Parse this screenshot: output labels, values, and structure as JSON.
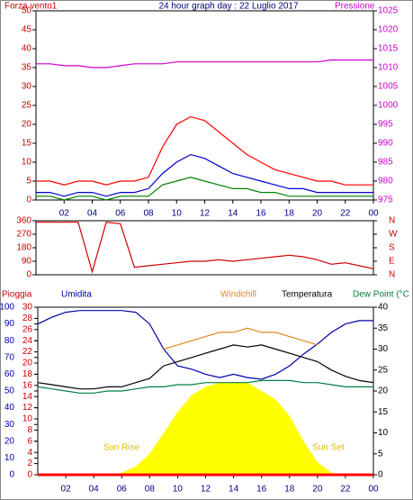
{
  "chart_data": [
    {
      "type": "line",
      "title": "24 hour graph day : 22 Luglio 2017",
      "x": [
        0,
        1,
        2,
        3,
        4,
        5,
        6,
        7,
        8,
        9,
        10,
        11,
        12,
        13,
        14,
        15,
        16,
        17,
        18,
        19,
        20,
        21,
        22,
        23,
        24
      ],
      "xlim": [
        0,
        24
      ],
      "xticks": [
        {
          "value": 2,
          "label": "02"
        },
        {
          "value": 4,
          "label": "04"
        },
        {
          "value": 6,
          "label": "06"
        },
        {
          "value": 8,
          "label": "08"
        },
        10,
        12,
        14,
        16,
        18,
        20,
        22,
        {
          "value": 24,
          "label": "00"
        }
      ],
      "ylim": [
        0,
        50
      ],
      "yticks": [
        0,
        5,
        10,
        15,
        20,
        25,
        30,
        35,
        40,
        45,
        50
      ],
      "ycolor": "#cc0000",
      "y2lim": [
        975,
        1025
      ],
      "y2ticks": [
        975,
        980,
        985,
        990,
        995,
        1000,
        1005,
        1010,
        1015,
        1020,
        1025
      ],
      "y2color": "#cc00cc",
      "series": [
        {
          "name": "Forza vento1",
          "color": "#ff0000",
          "values": [
            5,
            5,
            4,
            5,
            5,
            4,
            5,
            5,
            6,
            14,
            20,
            22,
            21,
            18,
            15,
            12,
            10,
            8,
            7,
            6,
            5,
            5,
            4,
            4,
            4
          ]
        },
        {
          "color": "#0000cc",
          "values": [
            2,
            2,
            1,
            2,
            2,
            1,
            2,
            2,
            3,
            7,
            10,
            12,
            11,
            9,
            7,
            6,
            5,
            4,
            3,
            3,
            2,
            2,
            2,
            2,
            2
          ]
        },
        {
          "color": "#008000",
          "values": [
            1,
            1,
            0,
            1,
            1,
            0,
            1,
            1,
            1,
            4,
            5,
            6,
            5,
            4,
            3,
            3,
            2,
            2,
            1,
            1,
            1,
            1,
            1,
            1,
            1
          ]
        },
        {
          "name": "Pressione",
          "color": "#cc00cc",
          "axis": "y2",
          "values": [
            1011,
            1011,
            1010.5,
            1010.5,
            1010,
            1010,
            1010.5,
            1011,
            1011,
            1011,
            1011.5,
            1011.5,
            1011.5,
            1011.5,
            1011.5,
            1011.5,
            1011.5,
            1011.5,
            1011.5,
            1011.5,
            1011.5,
            1012,
            1012,
            1012,
            1012
          ]
        }
      ]
    },
    {
      "type": "line",
      "x": [
        0,
        1,
        2,
        3,
        4,
        5,
        6,
        7,
        8,
        9,
        10,
        11,
        12,
        13,
        14,
        15,
        16,
        17,
        18,
        19,
        20,
        21,
        22,
        23,
        24
      ],
      "xlim": [
        0,
        24
      ],
      "ylim": [
        0,
        360
      ],
      "yticks": [
        0,
        90,
        180,
        270,
        360
      ],
      "ycolor": "#cc0000",
      "y2lim": [
        0,
        360
      ],
      "y2ticks": [
        {
          "value": 0,
          "label": "N"
        },
        {
          "value": 90,
          "label": "E"
        },
        {
          "value": 180,
          "label": "S"
        },
        {
          "value": 270,
          "label": "W"
        },
        {
          "value": 360,
          "label": "N"
        }
      ],
      "y2color": "#cc0000",
      "series": [
        {
          "color": "#cc0000",
          "values": [
            350,
            350,
            350,
            350,
            20,
            350,
            340,
            50,
            60,
            70,
            80,
            90,
            90,
            100,
            90,
            100,
            110,
            120,
            130,
            120,
            100,
            70,
            80,
            60,
            40
          ]
        }
      ]
    },
    {
      "type": "line",
      "x": [
        0,
        1,
        2,
        3,
        4,
        5,
        6,
        7,
        8,
        9,
        10,
        11,
        12,
        13,
        14,
        15,
        16,
        17,
        18,
        19,
        20,
        21,
        22,
        23,
        24
      ],
      "xlim": [
        0,
        24
      ],
      "xticks": [
        {
          "value": 2,
          "label": "02"
        },
        {
          "value": 4,
          "label": "04"
        },
        {
          "value": 6,
          "label": "06"
        },
        {
          "value": 8,
          "label": "08"
        },
        10,
        12,
        14,
        16,
        18,
        20,
        22,
        {
          "value": 24,
          "label": "00"
        }
      ],
      "ylim": [
        0,
        100
      ],
      "yticks": [
        0,
        10,
        20,
        30,
        40,
        50,
        60,
        70,
        80,
        90,
        100
      ],
      "ycolor": "#0000aa",
      "y3lim": [
        0,
        30
      ],
      "y3ticks": [
        0,
        2,
        4,
        6,
        8,
        10,
        12,
        14,
        16,
        18,
        20,
        22,
        24,
        26,
        28,
        30
      ],
      "y3color": "#cc0000",
      "y2lim": [
        0,
        40
      ],
      "y2ticks": [
        0,
        5,
        10,
        15,
        20,
        25,
        30,
        35,
        40
      ],
      "y2color": "#000000",
      "annotations": [
        "Sun Rise",
        "Sun Set"
      ],
      "series": [
        {
          "color": "#ffff00",
          "axis": "y2",
          "area": true,
          "values": [
            0,
            0,
            0,
            0,
            0,
            0,
            0.5,
            2,
            5,
            10,
            15,
            19,
            21,
            22,
            22,
            22,
            20,
            18,
            14,
            8,
            3,
            0.5,
            0,
            0,
            0
          ]
        },
        {
          "name": "Pioggia",
          "color": "#ff0000",
          "axis": "y3",
          "values": [
            0,
            0,
            0,
            0,
            0,
            0,
            0,
            0,
            0,
            0,
            0,
            0,
            0,
            0,
            0,
            0,
            0,
            0,
            0,
            0,
            0,
            0,
            0,
            0,
            0
          ]
        },
        {
          "name": "Umidita",
          "color": "#0000aa",
          "values": [
            90,
            94,
            97,
            98,
            98,
            98,
            98,
            97,
            90,
            75,
            65,
            63,
            60,
            58,
            60,
            58,
            57,
            60,
            65,
            72,
            78,
            85,
            90,
            92,
            92
          ]
        },
        {
          "name": "Windchill",
          "color": "#e08a20",
          "axis": "y2",
          "values": [
            null,
            null,
            null,
            null,
            null,
            null,
            null,
            null,
            null,
            30,
            31,
            32,
            33,
            34,
            34,
            35,
            34,
            34,
            33,
            32,
            31,
            null,
            null,
            null,
            null
          ]
        },
        {
          "name": "Temperatura",
          "color": "#000000",
          "axis": "y2",
          "values": [
            22,
            21.5,
            21,
            20.5,
            20.5,
            21,
            21,
            22,
            23,
            26,
            27,
            28,
            29,
            30,
            31,
            30.5,
            31,
            30,
            29,
            28,
            27,
            25,
            23.5,
            22.5,
            22
          ]
        },
        {
          "name": "Dew Point (°C",
          "color": "#008040",
          "axis": "y2",
          "values": [
            21,
            20.5,
            20,
            19.5,
            19.5,
            20,
            20,
            20.5,
            21,
            21,
            21.5,
            21.5,
            22,
            22,
            22,
            22,
            22.5,
            22.5,
            22.5,
            22,
            22,
            21.5,
            21,
            21,
            21
          ]
        }
      ]
    }
  ]
}
